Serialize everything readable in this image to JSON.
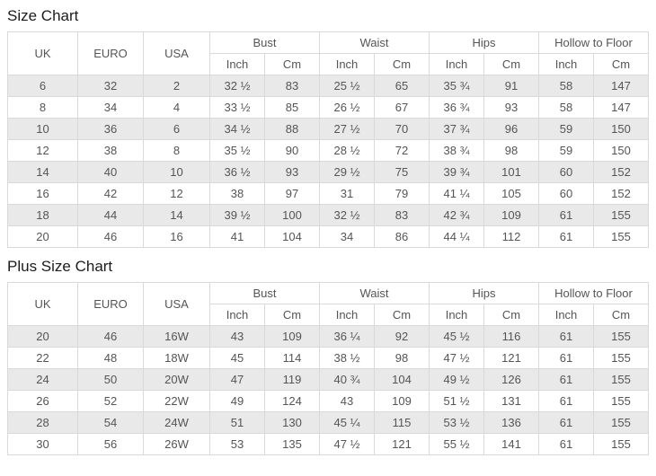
{
  "colors": {
    "alt_row_bg": "#e9e9e9",
    "border": "#d9d9d9",
    "cell_text": "#555555",
    "title_text": "#1c1c1c"
  },
  "chart_data": [
    {
      "type": "table",
      "title": "Size Chart",
      "headers": {
        "uk": "UK",
        "euro": "EURO",
        "usa": "USA",
        "bust": "Bust",
        "waist": "Waist",
        "hips": "Hips",
        "hollow_to_floor": "Hollow to Floor",
        "inch": "Inch",
        "cm": "Cm"
      },
      "rows": [
        [
          "6",
          "32",
          "2",
          "32 ½",
          "83",
          "25 ½",
          "65",
          "35 ¾",
          "91",
          "58",
          "147"
        ],
        [
          "8",
          "34",
          "4",
          "33 ½",
          "85",
          "26 ½",
          "67",
          "36 ¾",
          "93",
          "58",
          "147"
        ],
        [
          "10",
          "36",
          "6",
          "34 ½",
          "88",
          "27 ½",
          "70",
          "37 ¾",
          "96",
          "59",
          "150"
        ],
        [
          "12",
          "38",
          "8",
          "35 ½",
          "90",
          "28 ½",
          "72",
          "38 ¾",
          "98",
          "59",
          "150"
        ],
        [
          "14",
          "40",
          "10",
          "36 ½",
          "93",
          "29 ½",
          "75",
          "39 ¾",
          "101",
          "60",
          "152"
        ],
        [
          "16",
          "42",
          "12",
          "38",
          "97",
          "31",
          "79",
          "41 ¼",
          "105",
          "60",
          "152"
        ],
        [
          "18",
          "44",
          "14",
          "39 ½",
          "100",
          "32 ½",
          "83",
          "42 ¾",
          "109",
          "61",
          "155"
        ],
        [
          "20",
          "46",
          "16",
          "41",
          "104",
          "34",
          "86",
          "44 ¼",
          "112",
          "61",
          "155"
        ]
      ]
    },
    {
      "type": "table",
      "title": "Plus Size Chart",
      "headers": {
        "uk": "UK",
        "euro": "EURO",
        "usa": "USA",
        "bust": "Bust",
        "waist": "Waist",
        "hips": "Hips",
        "hollow_to_floor": "Hollow to Floor",
        "inch": "Inch",
        "cm": "Cm"
      },
      "rows": [
        [
          "20",
          "46",
          "16W",
          "43",
          "109",
          "36 ¼",
          "92",
          "45 ½",
          "116",
          "61",
          "155"
        ],
        [
          "22",
          "48",
          "18W",
          "45",
          "114",
          "38 ½",
          "98",
          "47 ½",
          "121",
          "61",
          "155"
        ],
        [
          "24",
          "50",
          "20W",
          "47",
          "119",
          "40 ¾",
          "104",
          "49 ½",
          "126",
          "61",
          "155"
        ],
        [
          "26",
          "52",
          "22W",
          "49",
          "124",
          "43",
          "109",
          "51 ½",
          "131",
          "61",
          "155"
        ],
        [
          "28",
          "54",
          "24W",
          "51",
          "130",
          "45 ¼",
          "115",
          "53 ½",
          "136",
          "61",
          "155"
        ],
        [
          "30",
          "56",
          "26W",
          "53",
          "135",
          "47 ½",
          "121",
          "55 ½",
          "141",
          "61",
          "155"
        ]
      ]
    }
  ]
}
